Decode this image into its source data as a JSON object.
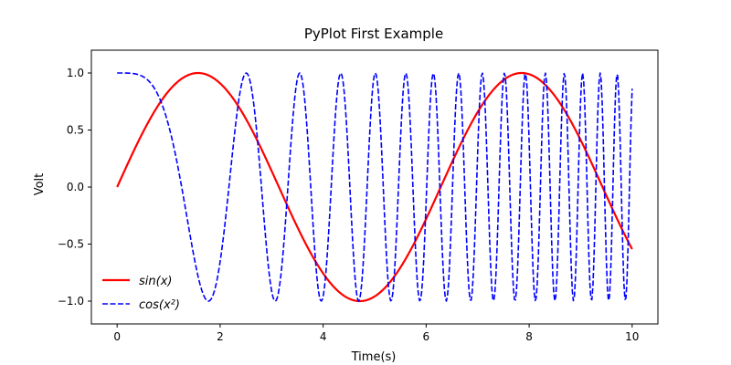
{
  "chart_data": {
    "type": "line",
    "title": "PyPlot First Example",
    "xlabel": "Time(s)",
    "ylabel": "Volt",
    "xlim": [
      -0.5,
      10.5
    ],
    "ylim": [
      -1.2,
      1.2
    ],
    "x_ticks": [
      0,
      2,
      4,
      6,
      8,
      10
    ],
    "x_tick_labels": [
      "0",
      "2",
      "4",
      "6",
      "8",
      "10"
    ],
    "y_ticks": [
      -1.0,
      -0.5,
      0.0,
      0.5,
      1.0
    ],
    "y_tick_labels": [
      "−1.0",
      "−0.5",
      "0.0",
      "0.5",
      "1.0"
    ],
    "grid": false,
    "legend_position": "lower-left",
    "x": {
      "start": 0,
      "end": 10,
      "count": 500
    },
    "series": [
      {
        "name": "sin(x)",
        "legend_html": "sin(x)",
        "function": "sin(x)",
        "color": "#ff0000",
        "style": "solid"
      },
      {
        "name": "cos(x^2)",
        "legend_html": "cos(x²)",
        "function": "cos(x^2)",
        "color": "#0000ff",
        "style": "dashed"
      }
    ]
  }
}
